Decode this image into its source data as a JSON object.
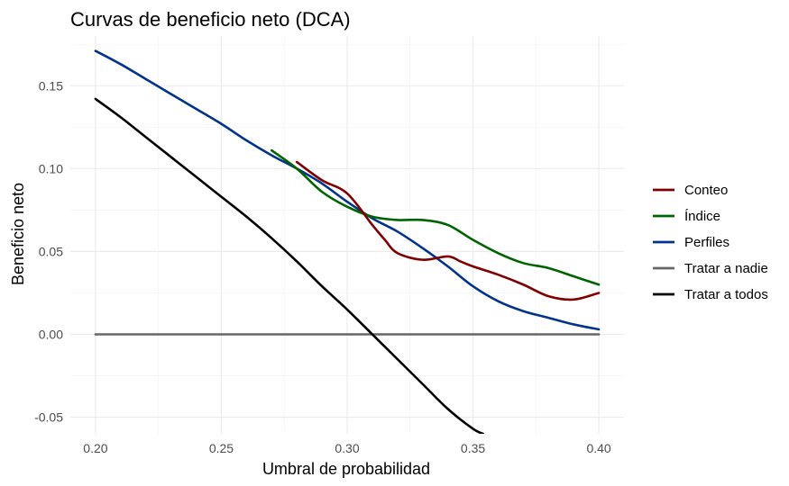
{
  "chart_data": {
    "type": "line",
    "title": "Curvas de beneficio neto (DCA)",
    "xlabel": "Umbral de probabilidad",
    "ylabel": "Beneficio neto",
    "xlim": [
      0.19,
      0.41
    ],
    "ylim": [
      -0.06,
      0.18
    ],
    "x_ticks": [
      0.2,
      0.25,
      0.3,
      0.35,
      0.4
    ],
    "x_tick_labels": [
      "0.20",
      "0.25",
      "0.30",
      "0.35",
      "0.40"
    ],
    "y_ticks": [
      -0.05,
      0.0,
      0.05,
      0.1,
      0.15
    ],
    "y_tick_labels": [
      "-0.05",
      "0.00",
      "0.05",
      "0.10",
      "0.15"
    ],
    "grid": true,
    "legend_position": "right",
    "series": [
      {
        "name": "Conteo",
        "color": "#7f0000",
        "x": [
          0.28,
          0.29,
          0.3,
          0.31,
          0.315,
          0.32,
          0.33,
          0.34,
          0.345,
          0.35,
          0.36,
          0.37,
          0.38,
          0.39,
          0.4
        ],
        "y": [
          0.104,
          0.093,
          0.085,
          0.066,
          0.057,
          0.049,
          0.045,
          0.047,
          0.044,
          0.041,
          0.036,
          0.03,
          0.023,
          0.021,
          0.025
        ]
      },
      {
        "name": "Índice",
        "color": "#006400",
        "x": [
          0.27,
          0.28,
          0.29,
          0.3,
          0.31,
          0.32,
          0.33,
          0.34,
          0.35,
          0.36,
          0.37,
          0.38,
          0.39,
          0.4
        ],
        "y": [
          0.111,
          0.1,
          0.086,
          0.077,
          0.071,
          0.069,
          0.069,
          0.066,
          0.057,
          0.049,
          0.043,
          0.04,
          0.035,
          0.03
        ]
      },
      {
        "name": "Perfiles",
        "color": "#00338c",
        "x": [
          0.2,
          0.21,
          0.22,
          0.23,
          0.24,
          0.25,
          0.26,
          0.27,
          0.28,
          0.29,
          0.3,
          0.31,
          0.32,
          0.33,
          0.34,
          0.35,
          0.36,
          0.37,
          0.38,
          0.39,
          0.4
        ],
        "y": [
          0.171,
          0.163,
          0.154,
          0.145,
          0.136,
          0.127,
          0.117,
          0.108,
          0.1,
          0.091,
          0.08,
          0.07,
          0.062,
          0.052,
          0.041,
          0.029,
          0.02,
          0.014,
          0.01,
          0.006,
          0.003
        ]
      },
      {
        "name": "Tratar a nadie",
        "color": "#666666",
        "x": [
          0.2,
          0.4
        ],
        "y": [
          0.0,
          0.0
        ]
      },
      {
        "name": "Tratar a todos",
        "color": "#000000",
        "x": [
          0.2,
          0.21,
          0.22,
          0.23,
          0.24,
          0.25,
          0.26,
          0.27,
          0.28,
          0.29,
          0.3,
          0.31,
          0.32,
          0.33,
          0.34,
          0.35,
          0.354
        ],
        "y": [
          0.142,
          0.131,
          0.119,
          0.107,
          0.095,
          0.083,
          0.071,
          0.058,
          0.044,
          0.029,
          0.015,
          0.0,
          -0.015,
          -0.03,
          -0.045,
          -0.057,
          -0.06
        ]
      }
    ]
  }
}
